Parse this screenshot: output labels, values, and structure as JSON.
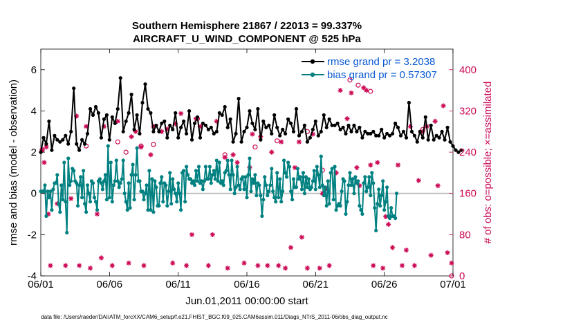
{
  "chart_data": {
    "type": "line",
    "title": "Southern Hemisphere 21867 / 22013 = 99.337%",
    "subtitle": "AIRCRAFT_U_WIND_COMPONENT @ 525 hPa",
    "xlabel": "Jun.01,2011 00:00:00 start",
    "ylabel": "rmse and bias (model - observation)",
    "y2label": "# of obs: o=possible; ×=assimilated",
    "footnote": "data file: /Users/raeder/DAI/ATM_forcXX/CAM6_setup/f.e21.FHIST_BGC.f09_025.CAM6assim.011/Diags_NTrS_2011-06/obs_diag_output.nc",
    "xticks": [
      "06/01",
      "06/06",
      "06/11",
      "06/16",
      "06/21",
      "06/26",
      "07/01"
    ],
    "x_range_days": [
      0,
      30
    ],
    "ylim": [
      -4,
      7
    ],
    "yticks": [
      "-4",
      "-2",
      "0",
      "2",
      "4",
      "6"
    ],
    "y2lim": [
      0,
      440
    ],
    "y2ticks": [
      "0",
      "80",
      "160",
      "240",
      "320",
      "400"
    ],
    "grid": false,
    "legend_position": "top-right",
    "colors": {
      "rmse": "#000000",
      "bias": "#008080",
      "obs": "#cc0a55",
      "zero": "#c0c0c0",
      "legend_text": "#0a5ad2"
    },
    "series": [
      {
        "name": "rmse grand pr = 3.2038",
        "axis": "left",
        "values": [
          2.0,
          2.7,
          2.4,
          3.5,
          2.1,
          2.8,
          2.6,
          2.5,
          2.6,
          2.8,
          2.4,
          3.0,
          5.1,
          2.4,
          2.1,
          2.6,
          2.4,
          2.9,
          4.1,
          3.8,
          4.2,
          3.9,
          2.7,
          3.6,
          3.8,
          2.6,
          3.7,
          3.4,
          4.1,
          5.6,
          3.0,
          3.5,
          3.9,
          4.8,
          3.1,
          3.8,
          2.9,
          4.4,
          5.3,
          4.1,
          3.9,
          3.0,
          3.3,
          3.0,
          3.4,
          3.5,
          2.7,
          3.3,
          3.1,
          3.9,
          2.7,
          3.2,
          3.5,
          2.9,
          4.0,
          2.6,
          3.4,
          3.7,
          2.7,
          3.4,
          3.3,
          3.1,
          3.2,
          2.9,
          3.0,
          3.9,
          3.8,
          4.2,
          3.2,
          3.6,
          2.5,
          2.9,
          4.6,
          2.5,
          3.0,
          3.2,
          4.0,
          3.4,
          3.1,
          4.1,
          2.6,
          3.5,
          3.2,
          3.3,
          2.9,
          3.8,
          3.2,
          2.8,
          3.1,
          2.9,
          3.6,
          3.4,
          3.0,
          4.1,
          2.8,
          3.0,
          3.3,
          2.5,
          2.7,
          3.1,
          3.5,
          2.8,
          3.0,
          3.8,
          3.2,
          3.6,
          3.3,
          3.3,
          3.4,
          3.1,
          3.2,
          2.9,
          3.3,
          3.0,
          3.3,
          3.0,
          3.2,
          2.7,
          3.0,
          2.9,
          2.9,
          3.0,
          2.8,
          2.8,
          3.1,
          2.7,
          2.9,
          2.8,
          2.9,
          3.4,
          3.2,
          2.8,
          3.0,
          2.7,
          4.4,
          3.0,
          2.8,
          2.5,
          3.0,
          2.7,
          3.7,
          2.6,
          3.3,
          2.6,
          2.8,
          2.7,
          3.0,
          2.6,
          3.2,
          2.5,
          2.3,
          2.1,
          2.0,
          2.1
        ],
        "x_step_days": 0.2
      },
      {
        "name": "bias grand pr = 0.57307",
        "axis": "left",
        "values": [
          0.1,
          0.1,
          0.1,
          0.4,
          -1.1,
          0.1,
          -0.2,
          0.1,
          -0.8,
          0.2,
          0.5,
          0.5,
          0.9,
          -0.5,
          -0.9,
          0.4,
          -0.3,
          1.5,
          -0.4,
          -1.9,
          1.7,
          0.4,
          0.6,
          1.2,
          1.1,
          0.6,
          0.5,
          -0.6,
          0.4,
          0.8,
          -0.2,
          1.1,
          -0.5,
          -0.9,
          0.4,
          0.0,
          -0.4,
          0.6,
          0.5,
          -0.2,
          -0.4,
          -0.8,
          0.6,
          0.7,
          0.5,
          0.2,
          0.6,
          0.9,
          -0.3,
          2.3,
          -0.2,
          1.5,
          -0.4,
          0.4,
          0.6,
          1.6,
          0.6,
          0.3,
          0.5,
          0.7,
          1.6,
          0.0,
          -0.4,
          -0.8,
          0.5,
          -0.7,
          0.9,
          1.4,
          -0.3,
          0.9,
          2.2,
          0.6,
          0.6,
          0.1,
          0.1,
          -0.3,
          0.0,
          0.4,
          -0.8,
          1.1,
          -0.8,
          0.7,
          -0.9,
          0.6,
          0.3,
          -0.6,
          -0.6,
          0.5,
          0.8,
          -0.4,
          0.5,
          0.4,
          -0.6,
          0.1,
          1.0,
          -0.5,
          0.7,
          0.2,
          0.0,
          -0.4,
          0.5,
          0.0,
          -0.8,
          1.0,
          1.1,
          -0.4,
          1.3,
          0.9,
          0.7,
          0.7,
          0.5,
          0.6,
          0.4,
          1.1,
          0.6,
          1.3,
          0.5,
          0.6,
          0.2,
          0.6,
          1.3,
          0.7,
          0.7,
          1.3,
          0.5,
          0.9,
          1.1,
          0.7,
          1.6,
          0.6,
          1.5,
          0.5,
          0.6,
          0.4,
          1.0,
          1.1,
          1.6,
          0.9,
          0.2,
          1.6,
          0.9,
          0.0,
          0.3,
          1.3,
          0.4,
          0.2,
          0.7,
          0.8,
          0.2,
          0.8,
          -0.2,
          0.9,
          1.7,
          0.1,
          0.7,
          0.5,
          0.9,
          -0.1,
          0.5,
          0.4,
          -0.1,
          -1.1,
          -0.3,
          0.8,
          0.4,
          -0.1,
          0.1,
          0.4,
          1.2,
          0.1,
          -0.2,
          -0.4,
          1.0,
          -0.2,
          0.7,
          -0.4,
          0.1,
          1.6,
          1.0,
          0.8,
          1.5,
          1.3,
          0.1,
          -0.3,
          0.7,
          0.3,
          0.3,
          1.2,
          0.7,
          0.8,
          0.2,
          1.0,
          0.0,
          0.8,
          0.3,
          0.7,
          0.2,
          0.3,
          0.6,
          1.1,
          0.2,
          1.3,
          0.9,
          0.3,
          1.8,
          0.4,
          -0.1,
          0.3,
          -0.6,
          0.6,
          -0.5,
          1.0,
          1.2,
          -0.3,
          1.3,
          -0.8,
          -0.6,
          -0.5,
          -0.6,
          0.1,
          0.7,
          0.6,
          -1.0,
          -0.4,
          0.4,
          1.0,
          0.4,
          0.7,
          0.0,
          0.8,
          0.5,
          0.6,
          -0.6,
          -0.8,
          -1.0,
          0.5,
          0.8,
          0.1,
          0.3,
          0.8,
          -0.1,
          1.0,
          0.5,
          -0.7,
          -1.8,
          -0.5,
          0.2,
          -0.6,
          -0.1,
          0.6,
          -0.8,
          -0.4,
          0.3,
          -1.1,
          -1.2,
          -0.7,
          -1.1,
          -1.1,
          -1.2,
          0.0
        ],
        "x_step_days": 0.1
      }
    ],
    "obs_assimilated": [
      [
        0.1,
        244
      ],
      [
        0.25,
        220
      ],
      [
        0.4,
        250
      ],
      [
        0.55,
        120
      ],
      [
        0.7,
        20
      ],
      [
        1.2,
        140
      ],
      [
        1.8,
        20
      ],
      [
        2.2,
        150
      ],
      [
        2.6,
        310
      ],
      [
        2.8,
        20
      ],
      [
        3.3,
        290
      ],
      [
        3.6,
        15
      ],
      [
        4.1,
        120
      ],
      [
        4.4,
        35
      ],
      [
        4.6,
        290
      ],
      [
        5.2,
        20
      ],
      [
        5.6,
        300
      ],
      [
        6.4,
        25
      ],
      [
        6.6,
        270
      ],
      [
        6.9,
        280
      ],
      [
        7.3,
        250
      ],
      [
        7.5,
        20
      ],
      [
        8.0,
        235
      ],
      [
        8.2,
        290
      ],
      [
        8.8,
        280
      ],
      [
        9.2,
        285
      ],
      [
        9.6,
        25
      ],
      [
        9.8,
        295
      ],
      [
        10.2,
        315
      ],
      [
        10.6,
        20
      ],
      [
        11.0,
        80
      ],
      [
        11.3,
        305
      ],
      [
        11.6,
        290
      ],
      [
        12.2,
        20
      ],
      [
        12.5,
        80
      ],
      [
        12.8,
        300
      ],
      [
        13.4,
        230
      ],
      [
        13.6,
        15
      ],
      [
        14.0,
        235
      ],
      [
        14.3,
        220
      ],
      [
        14.8,
        25
      ],
      [
        15.2,
        210
      ],
      [
        15.4,
        275
      ],
      [
        15.8,
        20
      ],
      [
        16.0,
        270
      ],
      [
        16.5,
        20
      ],
      [
        16.8,
        240
      ],
      [
        17.3,
        20
      ],
      [
        17.5,
        260
      ],
      [
        17.8,
        15
      ],
      [
        18.2,
        55
      ],
      [
        18.5,
        210
      ],
      [
        18.8,
        260
      ],
      [
        19.0,
        75
      ],
      [
        19.4,
        15
      ],
      [
        19.8,
        275
      ],
      [
        20.3,
        15
      ],
      [
        20.5,
        160
      ],
      [
        20.8,
        170
      ],
      [
        21.0,
        20
      ],
      [
        21.5,
        200
      ],
      [
        21.8,
        360
      ],
      [
        22.3,
        305
      ],
      [
        22.6,
        355
      ],
      [
        23.0,
        210
      ],
      [
        23.2,
        175
      ],
      [
        23.5,
        365
      ],
      [
        23.7,
        360
      ],
      [
        24.0,
        215
      ],
      [
        24.2,
        20
      ],
      [
        24.5,
        220
      ],
      [
        24.9,
        15
      ],
      [
        25.1,
        115
      ],
      [
        25.3,
        100
      ],
      [
        25.6,
        55
      ],
      [
        26.0,
        215
      ],
      [
        26.3,
        20
      ],
      [
        26.6,
        50
      ],
      [
        26.9,
        290
      ],
      [
        27.2,
        20
      ],
      [
        27.5,
        185
      ],
      [
        27.8,
        280
      ],
      [
        28.1,
        290
      ],
      [
        28.4,
        40
      ],
      [
        28.7,
        300
      ],
      [
        28.9,
        175
      ],
      [
        29.3,
        330
      ],
      [
        29.6,
        45
      ],
      [
        29.9,
        25
      ]
    ],
    "obs_possible": [
      [
        0.1,
        245
      ],
      [
        3.3,
        252
      ],
      [
        5.6,
        260
      ],
      [
        6.2,
        240
      ],
      [
        7.3,
        252
      ],
      [
        8.2,
        255
      ],
      [
        11.4,
        305
      ],
      [
        13.4,
        235
      ],
      [
        15.6,
        250
      ],
      [
        17.2,
        262
      ],
      [
        19.4,
        280
      ],
      [
        20.5,
        205
      ],
      [
        22.5,
        380
      ],
      [
        23.1,
        370
      ],
      [
        24.0,
        358
      ],
      [
        27.8,
        284
      ],
      [
        29.9,
        0
      ]
    ]
  }
}
